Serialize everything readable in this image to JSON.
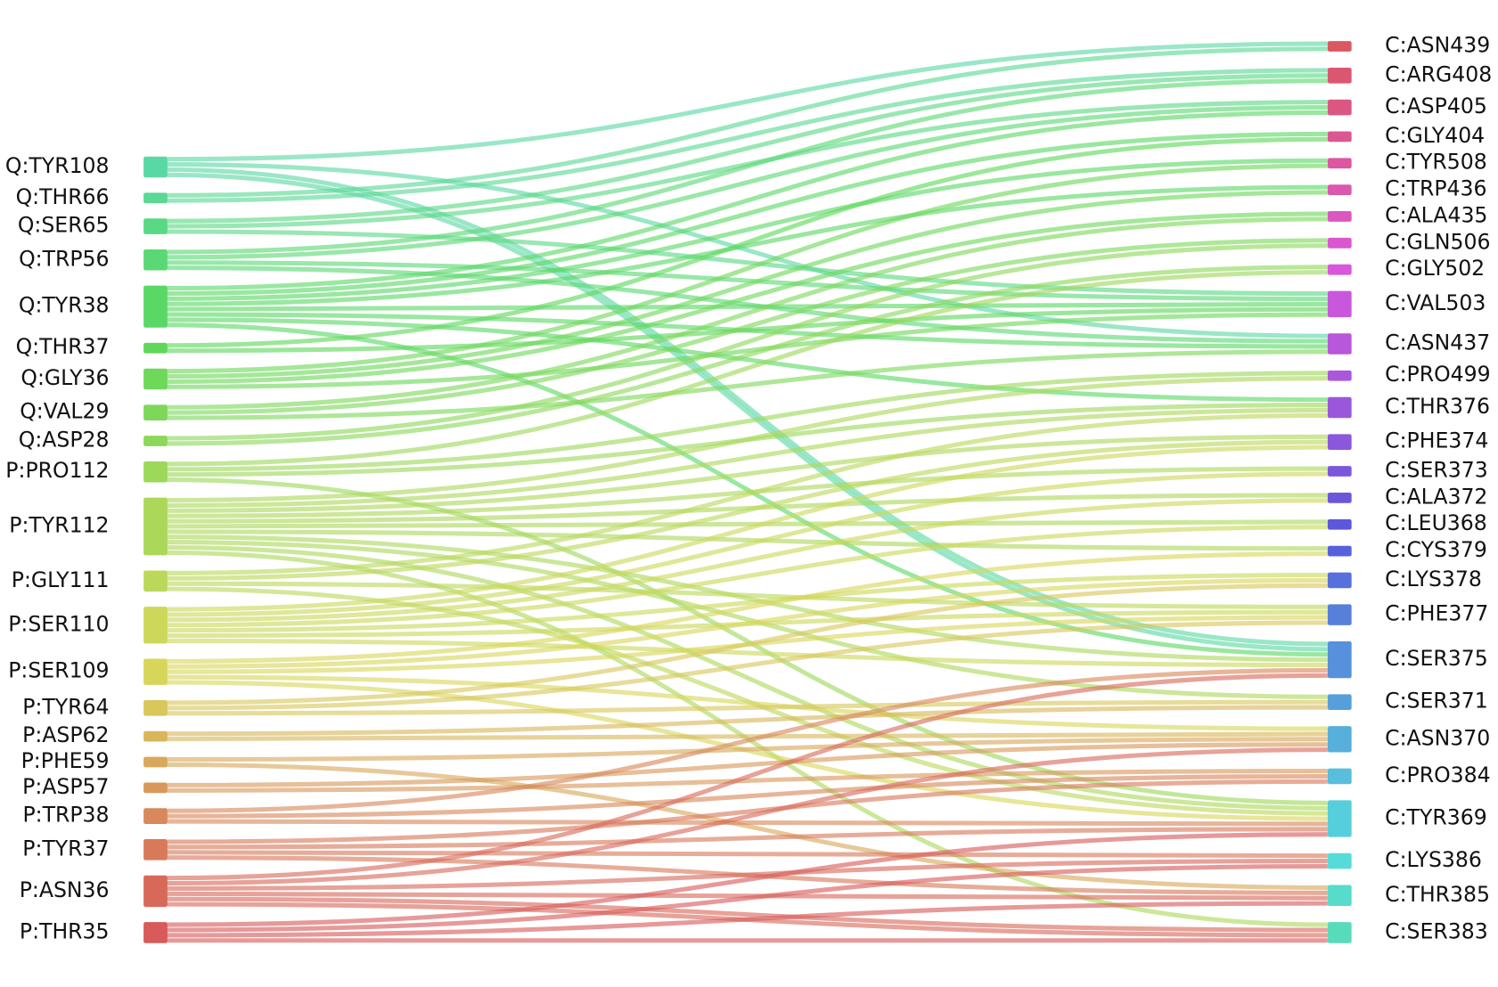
{
  "left_nodes": [
    "Q:TYR108",
    "Q:THR66",
    "Q:SER65",
    "Q:TRP56",
    "Q:TYR38",
    "Q:THR37",
    "Q:GLY36",
    "Q:VAL29",
    "Q:ASP28",
    "P:PRO112",
    "P:TYR112",
    "P:GLY111",
    "P:SER110",
    "P:SER109",
    "P:TYR64",
    "P:ASP62",
    "P:PHE59",
    "P:ASP57",
    "P:TRP38",
    "P:TYR37",
    "P:ASN36",
    "P:THR35"
  ],
  "right_nodes": [
    "C:ASN439",
    "C:ARG408",
    "C:ASP405",
    "C:GLY404",
    "C:TYR508",
    "C:TRP436",
    "C:ALA435",
    "C:GLN506",
    "C:GLY502",
    "C:VAL503",
    "C:ASN437",
    "C:PRO499",
    "C:THR376",
    "C:PHE374",
    "C:SER373",
    "C:ALA372",
    "C:LEU368",
    "C:CYS379",
    "C:LYS378",
    "C:PHE377",
    "C:SER375",
    "C:SER371",
    "C:ASN370",
    "C:PRO384",
    "C:TYR369",
    "C:LYS386",
    "C:THR385",
    "C:SER383"
  ],
  "links": [
    [
      0,
      0
    ],
    [
      0,
      10
    ],
    [
      0,
      20
    ],
    [
      0,
      20
    ],
    [
      1,
      0
    ],
    [
      1,
      1
    ],
    [
      2,
      1
    ],
    [
      2,
      2
    ],
    [
      2,
      9
    ],
    [
      3,
      1
    ],
    [
      3,
      2
    ],
    [
      3,
      9
    ],
    [
      3,
      10
    ],
    [
      4,
      2
    ],
    [
      4,
      3
    ],
    [
      4,
      4
    ],
    [
      4,
      5
    ],
    [
      4,
      9
    ],
    [
      4,
      10
    ],
    [
      4,
      12
    ],
    [
      4,
      20
    ],
    [
      5,
      3
    ],
    [
      5,
      9
    ],
    [
      6,
      4
    ],
    [
      6,
      5
    ],
    [
      6,
      6
    ],
    [
      6,
      9
    ],
    [
      7,
      6
    ],
    [
      7,
      7
    ],
    [
      7,
      10
    ],
    [
      8,
      7
    ],
    [
      8,
      8
    ],
    [
      9,
      8
    ],
    [
      9,
      11
    ],
    [
      9,
      12
    ],
    [
      9,
      24
    ],
    [
      10,
      11
    ],
    [
      10,
      12
    ],
    [
      10,
      13
    ],
    [
      10,
      14
    ],
    [
      10,
      15
    ],
    [
      10,
      16
    ],
    [
      10,
      17
    ],
    [
      10,
      20
    ],
    [
      10,
      21
    ],
    [
      10,
      24
    ],
    [
      10,
      27
    ],
    [
      11,
      12
    ],
    [
      11,
      13
    ],
    [
      11,
      19
    ],
    [
      11,
      24
    ],
    [
      12,
      13
    ],
    [
      12,
      14
    ],
    [
      12,
      15
    ],
    [
      12,
      16
    ],
    [
      12,
      18
    ],
    [
      12,
      19
    ],
    [
      12,
      20
    ],
    [
      13,
      17
    ],
    [
      13,
      18
    ],
    [
      13,
      19
    ],
    [
      13,
      22
    ],
    [
      13,
      24
    ],
    [
      14,
      18
    ],
    [
      14,
      19
    ],
    [
      14,
      21
    ],
    [
      15,
      21
    ],
    [
      15,
      22
    ],
    [
      16,
      22
    ],
    [
      16,
      26
    ],
    [
      17,
      22
    ],
    [
      17,
      23
    ],
    [
      18,
      20
    ],
    [
      18,
      23
    ],
    [
      18,
      24
    ],
    [
      19,
      23
    ],
    [
      19,
      24
    ],
    [
      19,
      25
    ],
    [
      19,
      26
    ],
    [
      20,
      20
    ],
    [
      20,
      22
    ],
    [
      20,
      25
    ],
    [
      20,
      26
    ],
    [
      20,
      27
    ],
    [
      20,
      27
    ],
    [
      21,
      24
    ],
    [
      21,
      25
    ],
    [
      21,
      26
    ],
    [
      21,
      27
    ]
  ]
}
